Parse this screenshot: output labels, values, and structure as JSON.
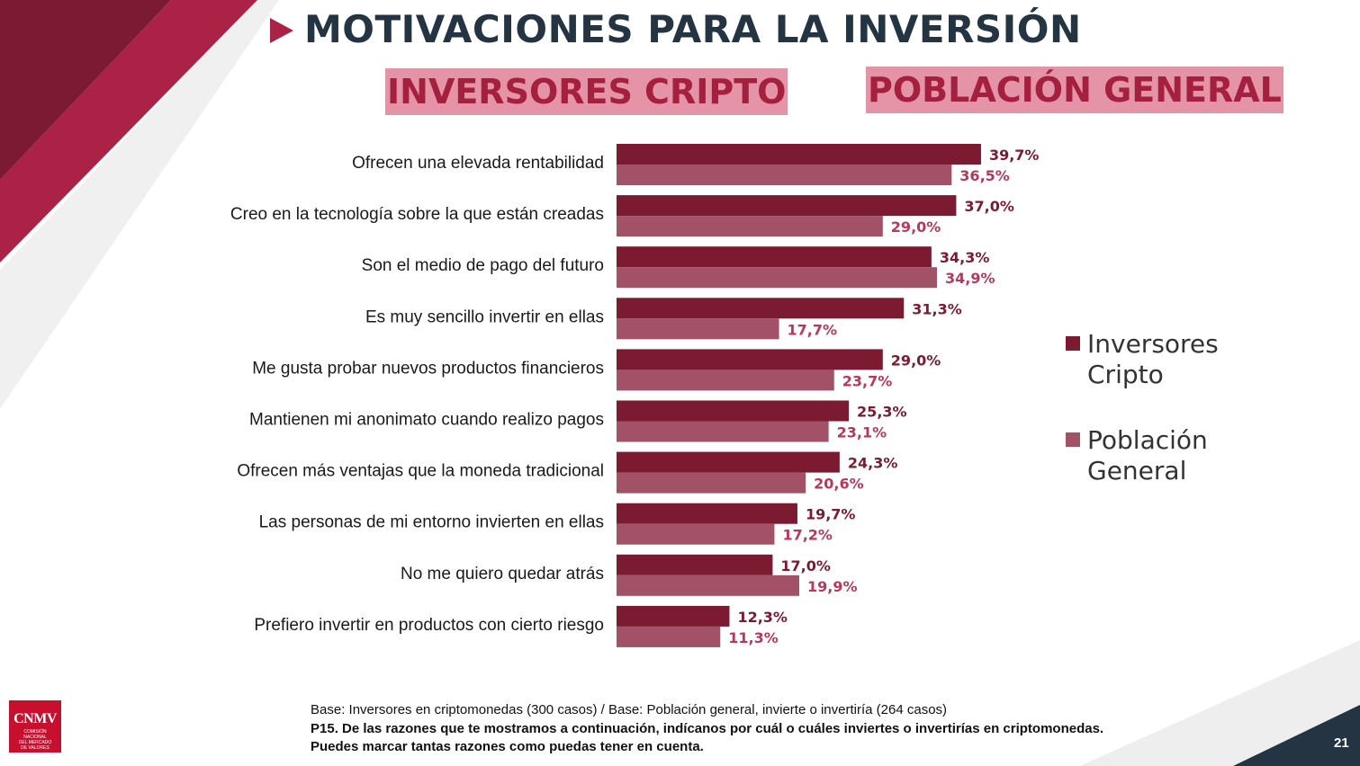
{
  "page_title": "MOTIVACIONES PARA LA INVERSIÓN",
  "headers": {
    "cripto": "INVERSORES CRIPTO",
    "general": "POBLACIÓN GENERAL"
  },
  "colors": {
    "cripto": "#7b1a30",
    "general": "#a25166",
    "cripto_label": "#7b1a30",
    "general_label": "#b8385c",
    "title": "#243443",
    "accent": "#ac2146",
    "header_bg": "#e593a6",
    "header_text": "#a5203f"
  },
  "legend": {
    "cripto": "Inversores Cripto",
    "general": "Población General"
  },
  "chart_data": {
    "type": "bar",
    "orientation": "horizontal",
    "title": "",
    "xlabel": "",
    "ylabel": "",
    "xlim": [
      0,
      45
    ],
    "unit": "%",
    "grid": false,
    "legend_position": "right",
    "categories": [
      "Ofrecen una elevada rentabilidad",
      "Creo en la tecnología sobre la que están creadas",
      "Son el medio de pago del futuro",
      "Es muy sencillo invertir en ellas",
      "Me gusta probar nuevos productos financieros",
      "Mantienen mi anonimato cuando realizo pagos",
      "Ofrecen más ventajas que la moneda tradicional",
      "Las personas de mi entorno invierten en ellas",
      "No me quiero quedar atrás",
      "Prefiero invertir en productos con cierto riesgo"
    ],
    "series": [
      {
        "name": "Inversores Cripto",
        "values": [
          39.7,
          37.0,
          34.3,
          31.3,
          29.0,
          25.3,
          24.3,
          19.7,
          17.0,
          12.3
        ],
        "labels": [
          "39,7%",
          "37,0%",
          "34,3%",
          "31,3%",
          "29,0%",
          "25,3%",
          "24,3%",
          "19,7%",
          "17,0%",
          "12,3%"
        ]
      },
      {
        "name": "Población General",
        "values": [
          36.5,
          29.0,
          34.9,
          17.7,
          23.7,
          23.1,
          20.6,
          17.2,
          19.9,
          11.3
        ],
        "labels": [
          "36,5%",
          "29,0%",
          "34,9%",
          "17,7%",
          "23,7%",
          "23,1%",
          "20,6%",
          "17,2%",
          "19,9%",
          "11,3%"
        ]
      }
    ]
  },
  "footnote": {
    "base": "Base: Inversores en criptomonedas (300 casos) / Base: Población general, invierte o invertiría (264 casos)",
    "question_line1": "P15. De las razones que te mostramos a continuación, indícanos por cuál o cuáles inviertes o invertirías en criptomonedas.",
    "question_line2": "Puedes marcar tantas razones como puedas tener en cuenta."
  },
  "logo": {
    "text": "CNMV",
    "subtitle": [
      "COMISIÓN",
      "NACIONAL",
      "DEL MERCADO",
      "DE VALORES"
    ]
  },
  "page_number": "21"
}
